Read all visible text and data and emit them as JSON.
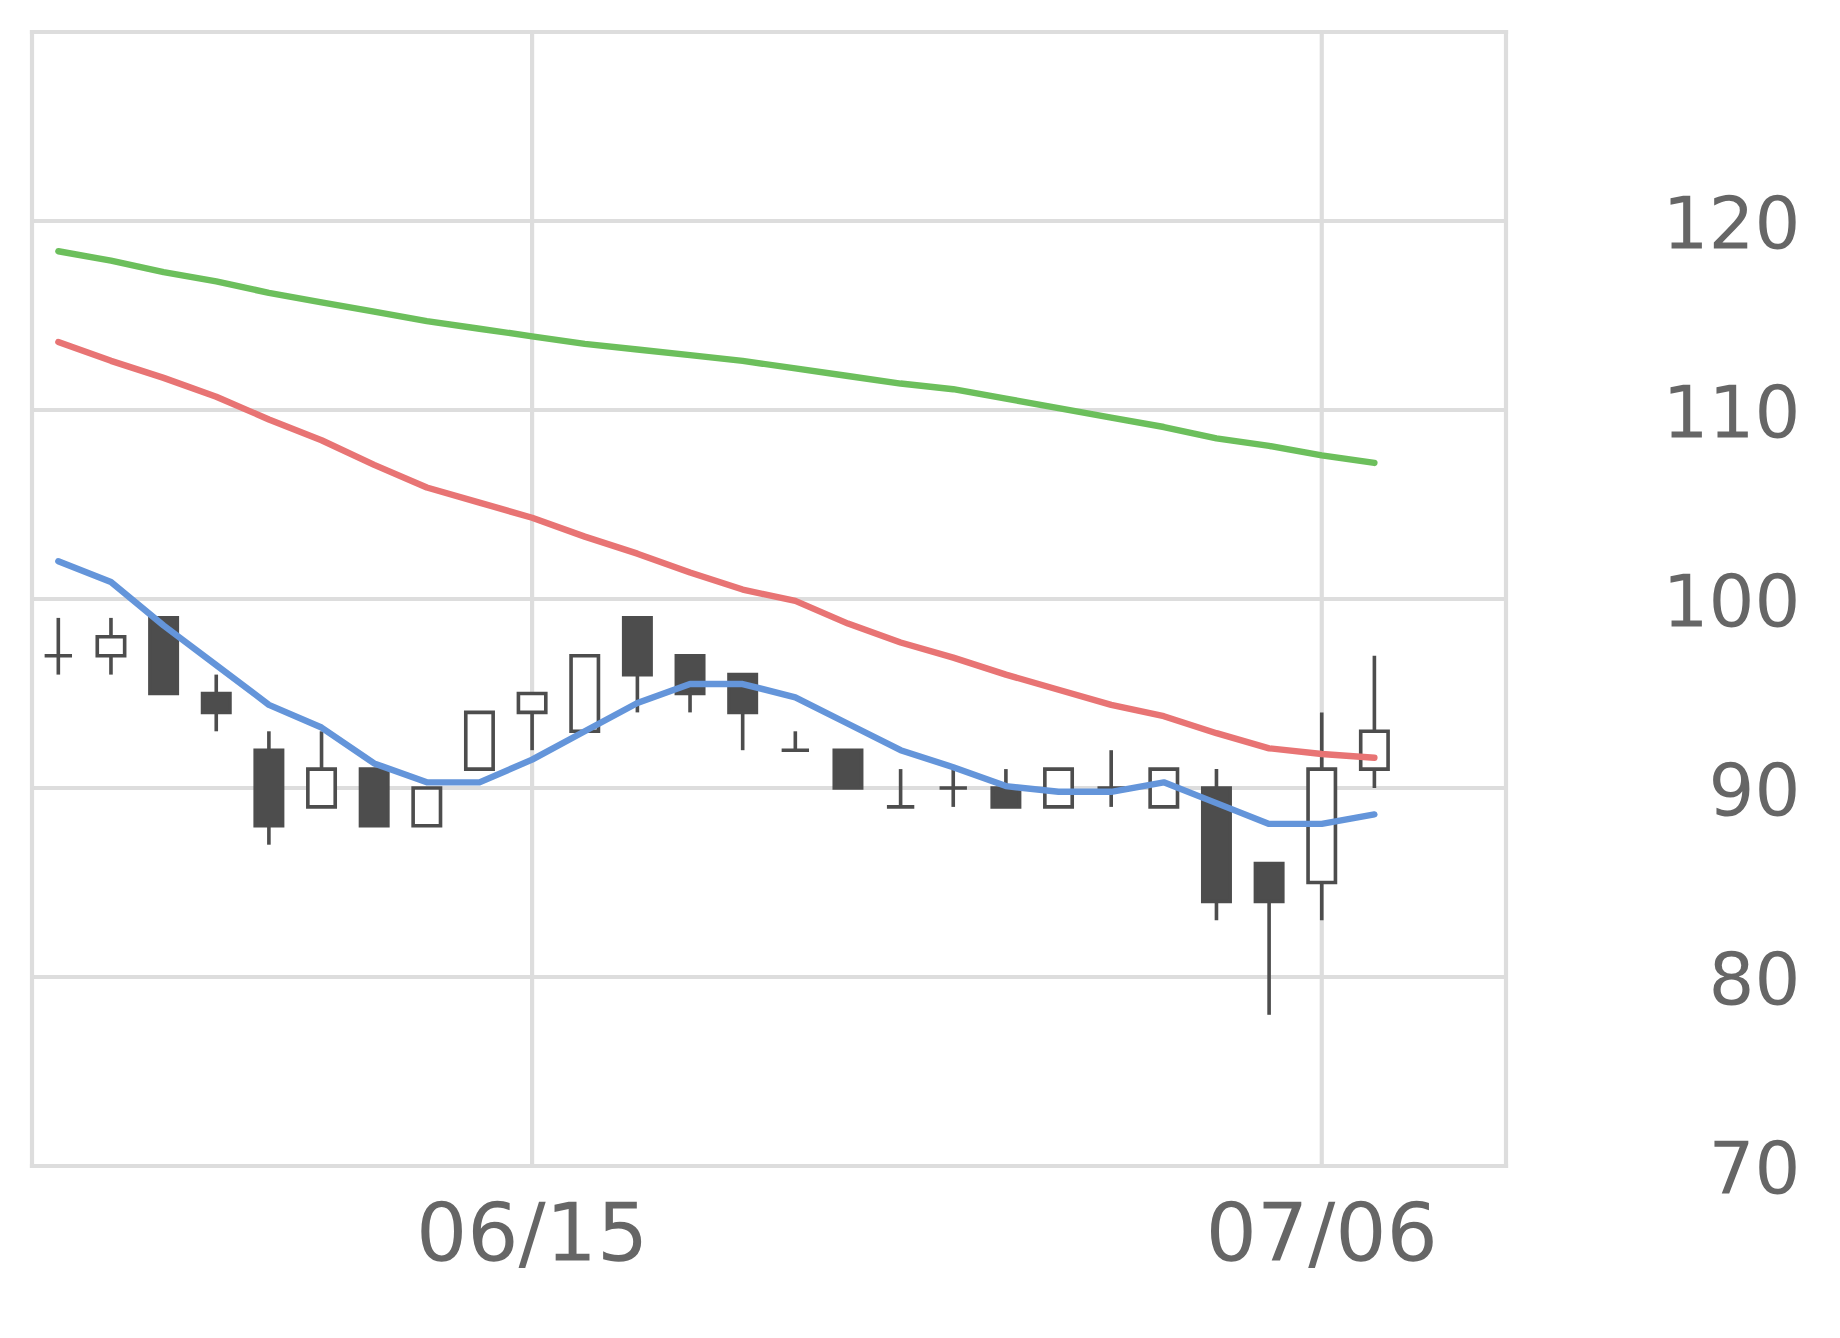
{
  "chart_data": {
    "type": "candlestick",
    "categories": [
      null,
      null,
      null,
      null,
      null,
      null,
      null,
      null,
      null,
      "06/15",
      null,
      null,
      null,
      null,
      null,
      null,
      null,
      null,
      null,
      null,
      null,
      null,
      null,
      null,
      "07/06",
      null,
      null,
      null
    ],
    "ohlc": [
      [
        97,
        99,
        96,
        97
      ],
      [
        97,
        99,
        96,
        98
      ],
      [
        99,
        99,
        95,
        95
      ],
      [
        95,
        96,
        93,
        94
      ],
      [
        92,
        93,
        87,
        88
      ],
      [
        89,
        93,
        89,
        91
      ],
      [
        91,
        91,
        88,
        88
      ],
      [
        88,
        90,
        88,
        90
      ],
      [
        91,
        94,
        91,
        94
      ],
      [
        94,
        95,
        92,
        95
      ],
      [
        93,
        97,
        93,
        97
      ],
      [
        99,
        99,
        94,
        96
      ],
      [
        97,
        97,
        94,
        95
      ],
      [
        96,
        96,
        92,
        94
      ],
      [
        92,
        93,
        92,
        92
      ],
      [
        92,
        92,
        90,
        90
      ],
      [
        89,
        91,
        89,
        89
      ],
      [
        90,
        91,
        89,
        90
      ],
      [
        90,
        91,
        89,
        89
      ],
      [
        89,
        91,
        89,
        91
      ],
      [
        90,
        92,
        89,
        90
      ],
      [
        89,
        91,
        89,
        91
      ],
      [
        90,
        91,
        83,
        84
      ],
      [
        86,
        86,
        78,
        84
      ],
      [
        85,
        94,
        83,
        91
      ],
      [
        91,
        97,
        90,
        93
      ],
      null,
      null
    ],
    "color": "#4d4d4d",
    "series": [
      {
        "type": "line",
        "color": "#6495da",
        "values": [
          102.0,
          100.9,
          98.6,
          96.5,
          94.4,
          93.2,
          91.3,
          90.3,
          90.3,
          91.5,
          93.0,
          94.5,
          95.5,
          95.5,
          94.8,
          93.4,
          92.0,
          91.1,
          90.1,
          89.8,
          89.8,
          90.3,
          89.2,
          88.1,
          88.1,
          88.6,
          null,
          null
        ]
      },
      {
        "type": "line",
        "color": "#e87474",
        "values": [
          113.6,
          112.6,
          111.7,
          110.7,
          109.5,
          108.4,
          107.1,
          105.9,
          105.1,
          104.3,
          103.3,
          102.4,
          101.4,
          100.5,
          99.9,
          98.7,
          97.7,
          96.9,
          96.0,
          95.2,
          94.4,
          93.8,
          92.9,
          92.1,
          91.8,
          91.6,
          null,
          null
        ]
      },
      {
        "type": "line",
        "color": "#6cbf5c",
        "values": [
          118.4,
          117.9,
          117.3,
          116.8,
          116.2,
          115.7,
          115.2,
          114.7,
          114.3,
          113.9,
          113.5,
          113.2,
          112.9,
          112.6,
          112.2,
          111.8,
          111.4,
          111.1,
          110.6,
          110.1,
          109.6,
          109.1,
          108.5,
          108.1,
          107.6,
          107.2,
          null,
          null
        ]
      }
    ],
    "ylim": [
      70,
      130
    ],
    "yticks": [
      70,
      80,
      90,
      100,
      110,
      120
    ],
    "grid": true
  }
}
